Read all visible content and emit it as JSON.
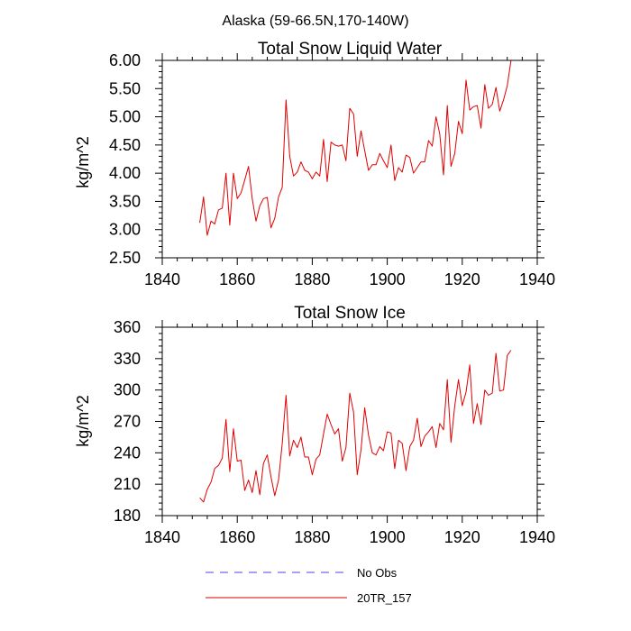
{
  "figure": {
    "title": "Alaska (59-66.5N,170-140W)"
  },
  "legend": {
    "entries": [
      {
        "label": "No Obs",
        "color": "#4a4ad8",
        "style": "dashed"
      },
      {
        "label": "20TR_157",
        "color": "#e00000",
        "style": "solid"
      }
    ]
  },
  "chart_data": [
    {
      "type": "line",
      "title": "Total Snow Liquid Water",
      "xlabel": "",
      "ylabel": "kg/m^2",
      "xlim": [
        1840,
        1940
      ],
      "ylim": [
        2.5,
        6.0
      ],
      "xticks": [
        1840,
        1860,
        1880,
        1900,
        1920,
        1940
      ],
      "xtick_labels": [
        "1840",
        "1860",
        "1880",
        "1900",
        "1920",
        "1940"
      ],
      "yticks": [
        2.5,
        3.0,
        3.5,
        4.0,
        4.5,
        5.0,
        5.5,
        6.0
      ],
      "ytick_labels": [
        "2.50",
        "3.00",
        "3.50",
        "4.00",
        "4.50",
        "5.00",
        "5.50",
        "6.00"
      ],
      "series": [
        {
          "name": "20TR_157",
          "color": "#e00000",
          "x": [
            1850,
            1851,
            1852,
            1853,
            1854,
            1855,
            1856,
            1857,
            1858,
            1859,
            1860,
            1861,
            1862,
            1863,
            1864,
            1865,
            1866,
            1867,
            1868,
            1869,
            1870,
            1871,
            1872,
            1873,
            1874,
            1875,
            1876,
            1877,
            1878,
            1879,
            1880,
            1881,
            1882,
            1883,
            1884,
            1885,
            1886,
            1887,
            1888,
            1889,
            1890,
            1891,
            1892,
            1893,
            1894,
            1895,
            1896,
            1897,
            1898,
            1899,
            1900,
            1901,
            1902,
            1903,
            1904,
            1905,
            1906,
            1907,
            1908,
            1909,
            1910,
            1911,
            1912,
            1913,
            1914,
            1915,
            1916,
            1917,
            1918,
            1919,
            1920,
            1921,
            1922,
            1923,
            1924,
            1925,
            1926,
            1927,
            1928,
            1929,
            1930,
            1931,
            1932,
            1933
          ],
          "values": [
            3.12,
            3.58,
            2.9,
            3.15,
            3.1,
            3.35,
            3.38,
            4.0,
            3.08,
            4.0,
            3.55,
            3.65,
            3.88,
            4.12,
            3.55,
            3.15,
            3.42,
            3.55,
            3.57,
            3.03,
            3.2,
            3.58,
            3.75,
            5.3,
            4.3,
            3.95,
            4.02,
            4.2,
            4.05,
            4.02,
            3.9,
            4.02,
            3.95,
            4.6,
            3.85,
            4.55,
            4.5,
            4.48,
            4.5,
            4.22,
            5.15,
            5.05,
            4.3,
            4.75,
            4.4,
            4.05,
            4.15,
            4.15,
            4.35,
            4.22,
            4.1,
            4.5,
            3.87,
            4.1,
            4.02,
            4.32,
            4.28,
            4.0,
            4.1,
            4.2,
            4.2,
            4.58,
            4.48,
            5.0,
            4.7,
            3.97,
            5.2,
            4.12,
            4.35,
            4.92,
            4.7,
            5.65,
            5.12,
            5.18,
            5.2,
            4.8,
            5.57,
            5.15,
            5.22,
            5.52,
            5.1,
            5.3,
            5.55,
            6.0
          ]
        }
      ]
    },
    {
      "type": "line",
      "title": "Total Snow Ice",
      "xlabel": "",
      "ylabel": "kg/m^2",
      "xlim": [
        1840,
        1940
      ],
      "ylim": [
        180,
        360
      ],
      "xticks": [
        1840,
        1860,
        1880,
        1900,
        1920,
        1940
      ],
      "xtick_labels": [
        "1840",
        "1860",
        "1880",
        "1900",
        "1920",
        "1940"
      ],
      "yticks": [
        180,
        210,
        240,
        270,
        300,
        330,
        360
      ],
      "ytick_labels": [
        "180",
        "210",
        "240",
        "270",
        "300",
        "330",
        "360"
      ],
      "series": [
        {
          "name": "20TR_157",
          "color": "#e00000",
          "x": [
            1850,
            1851,
            1852,
            1853,
            1854,
            1855,
            1856,
            1857,
            1858,
            1859,
            1860,
            1861,
            1862,
            1863,
            1864,
            1865,
            1866,
            1867,
            1868,
            1869,
            1870,
            1871,
            1872,
            1873,
            1874,
            1875,
            1876,
            1877,
            1878,
            1879,
            1880,
            1881,
            1882,
            1883,
            1884,
            1885,
            1886,
            1887,
            1888,
            1889,
            1890,
            1891,
            1892,
            1893,
            1894,
            1895,
            1896,
            1897,
            1898,
            1899,
            1900,
            1901,
            1902,
            1903,
            1904,
            1905,
            1906,
            1907,
            1908,
            1909,
            1910,
            1911,
            1912,
            1913,
            1914,
            1915,
            1916,
            1917,
            1918,
            1919,
            1920,
            1921,
            1922,
            1923,
            1924,
            1925,
            1926,
            1927,
            1928,
            1929,
            1930,
            1931,
            1932,
            1933
          ],
          "values": [
            197,
            193,
            205,
            212,
            225,
            228,
            235,
            272,
            222,
            263,
            232,
            233,
            204,
            214,
            202,
            223,
            200,
            230,
            238,
            217,
            199,
            214,
            249,
            295,
            237,
            252,
            245,
            255,
            236,
            236,
            219,
            234,
            238,
            258,
            277,
            267,
            258,
            263,
            232,
            245,
            297,
            279,
            219,
            243,
            283,
            257,
            240,
            238,
            246,
            242,
            260,
            259,
            225,
            252,
            249,
            223,
            246,
            252,
            273,
            246,
            256,
            260,
            265,
            245,
            268,
            262,
            310,
            250,
            285,
            310,
            285,
            298,
            324,
            268,
            287,
            267,
            300,
            295,
            297,
            335,
            299,
            300,
            333,
            338
          ]
        }
      ]
    }
  ]
}
